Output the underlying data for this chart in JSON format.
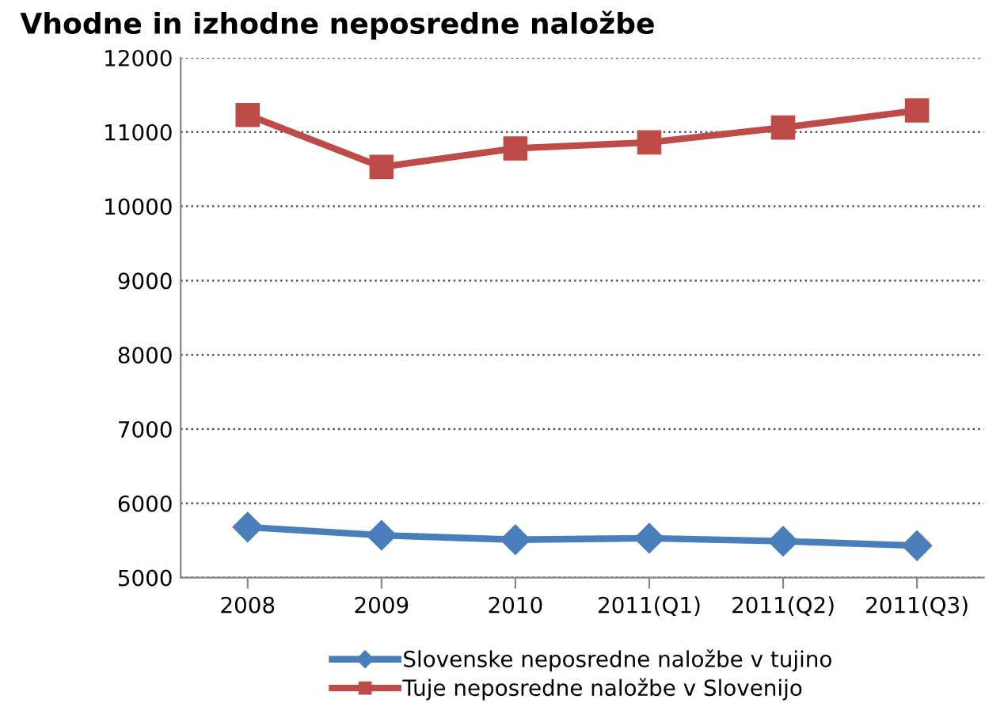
{
  "chart_data": {
    "type": "line",
    "title": "Vhodne in izhodne neposredne naložbe",
    "categories": [
      "2008",
      "2009",
      "2010",
      "2011(Q1)",
      "2011(Q2)",
      "2011(Q3)"
    ],
    "series": [
      {
        "name": "Slovenske neposredne naložbe v tujino",
        "color": "#4a7ebb",
        "marker": "diamond",
        "values": [
          5680,
          5570,
          5510,
          5530,
          5490,
          5430
        ]
      },
      {
        "name": "Tuje neposredne naložbe v Slovenijo",
        "color": "#be4b48",
        "marker": "square",
        "values": [
          11230,
          10530,
          10780,
          10860,
          11060,
          11290
        ]
      }
    ],
    "ylim": [
      5000,
      12000
    ],
    "yticks": [
      5000,
      6000,
      7000,
      8000,
      9000,
      10000,
      11000,
      12000
    ],
    "grid": "y",
    "legend": "bottom"
  }
}
